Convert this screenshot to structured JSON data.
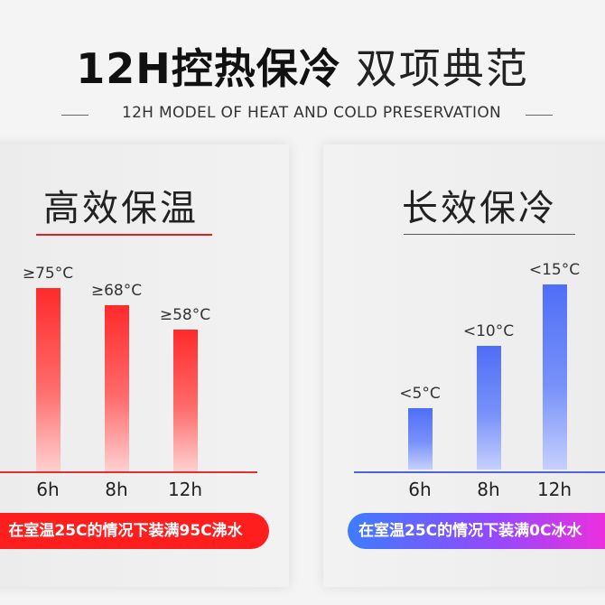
{
  "header": {
    "title_bold": "12H控热保冷",
    "title_light": "双项典范",
    "subtitle": "12H MODEL OF HEAT AND COLD PRESERVATION"
  },
  "panels": {
    "hot": {
      "title": "高效保温",
      "underline_color": "#e02020",
      "bar_color": "#ff2a2a",
      "note": "在室温25C的情况下装满95C沸水"
    },
    "cold": {
      "title": "长效保冷",
      "underline_color": "#555555",
      "bar_color": "#4f6ef7",
      "note": "在室温25C的情况下装满0C冰水"
    }
  },
  "chart_data": [
    {
      "type": "bar",
      "title": "高效保温",
      "categories": [
        "6h",
        "8h",
        "12h"
      ],
      "values": [
        75,
        68,
        58
      ],
      "labels": [
        "≥75°C",
        "≥68°C",
        "≥58°C"
      ]
    },
    {
      "type": "bar",
      "title": "长效保冷",
      "categories": [
        "6h",
        "8h",
        "12h"
      ],
      "values": [
        5,
        10,
        15
      ],
      "labels": [
        "<5°C",
        "<10°C",
        "<15°C"
      ]
    }
  ]
}
